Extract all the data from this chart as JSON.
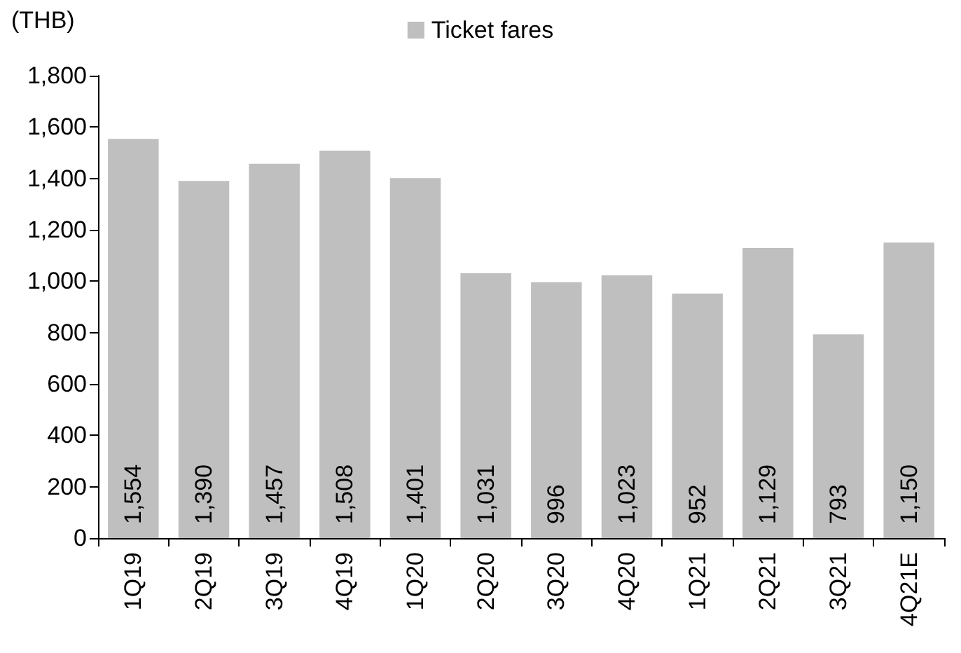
{
  "chart_data": {
    "type": "bar",
    "ylabel": "(THB)",
    "categories": [
      "1Q19",
      "2Q19",
      "3Q19",
      "4Q19",
      "1Q20",
      "2Q20",
      "3Q20",
      "4Q20",
      "1Q21",
      "2Q21",
      "3Q21",
      "4Q21E"
    ],
    "series": [
      {
        "name": "Ticket fares",
        "color": "#bfbfbf",
        "values": [
          1554,
          1390,
          1457,
          1508,
          1401,
          1031,
          996,
          1023,
          952,
          1129,
          793,
          1150
        ],
        "value_labels": [
          "1,554",
          "1,390",
          "1,457",
          "1,508",
          "1,401",
          "1,031",
          "996",
          "1,023",
          "952",
          "1,129",
          "793",
          "1,150"
        ]
      }
    ],
    "ylim": [
      0,
      1800
    ],
    "yticks": [
      0,
      200,
      400,
      600,
      800,
      {
        "value": 1000,
        "label": "1,000"
      },
      {
        "value": 1200,
        "label": "1,200"
      },
      {
        "value": 1400,
        "label": "1,400"
      },
      {
        "value": 1600,
        "label": "1,600"
      },
      {
        "value": 1800,
        "label": "1,800"
      }
    ],
    "grid": false,
    "legend": "top"
  }
}
